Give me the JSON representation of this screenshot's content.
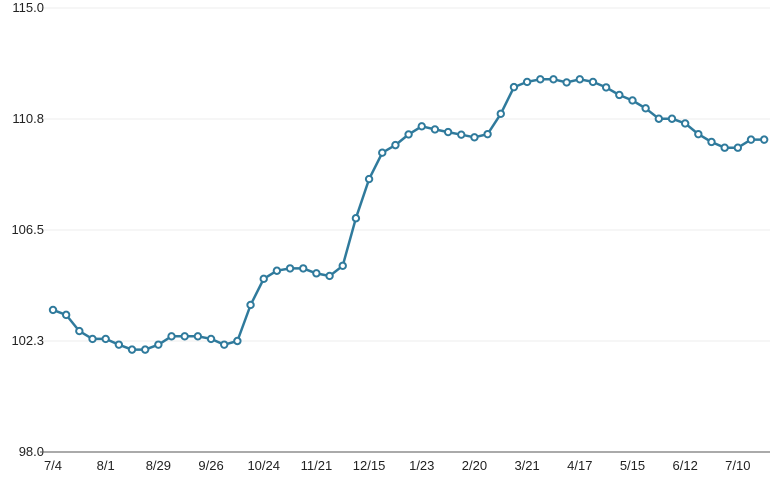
{
  "chart_data": {
    "type": "line",
    "title": "",
    "xlabel": "",
    "ylabel": "",
    "ylim": [
      98.0,
      115.0
    ],
    "y_ticks": [
      "98.0",
      "102.3",
      "106.5",
      "110.8",
      "115.0"
    ],
    "y_tick_values": [
      98.0,
      102.25,
      106.5,
      110.75,
      115.0
    ],
    "x_tick_labels": [
      "7/4",
      "8/1",
      "8/29",
      "9/26",
      "10/24",
      "11/21",
      "12/15",
      "1/23",
      "2/20",
      "3/21",
      "4/17",
      "5/15",
      "6/12",
      "7/10"
    ],
    "x_tick_every": 4,
    "grid": true,
    "marker": "hollow-circle",
    "colors": {
      "line": "#2f7a9c",
      "grid": "#eeeeee",
      "axis": "#555555"
    },
    "values": [
      103.44,
      103.25,
      102.63,
      102.33,
      102.33,
      102.11,
      101.92,
      101.92,
      102.11,
      102.43,
      102.43,
      102.43,
      102.33,
      102.11,
      102.25,
      103.63,
      104.63,
      104.94,
      105.03,
      105.03,
      104.84,
      104.74,
      105.13,
      106.95,
      108.45,
      109.46,
      109.75,
      110.16,
      110.47,
      110.35,
      110.25,
      110.15,
      110.05,
      110.17,
      110.95,
      111.97,
      112.17,
      112.27,
      112.27,
      112.15,
      112.27,
      112.17,
      111.96,
      111.67,
      111.46,
      111.16,
      110.76,
      110.76,
      110.58,
      110.17,
      109.87,
      109.65,
      109.65,
      109.96,
      109.96
    ]
  }
}
